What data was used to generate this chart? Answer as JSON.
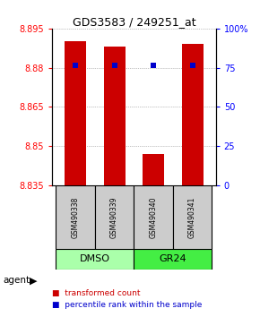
{
  "title": "GDS3583 / 249251_at",
  "samples": [
    "GSM490338",
    "GSM490339",
    "GSM490340",
    "GSM490341"
  ],
  "bar_values": [
    8.89,
    8.888,
    8.847,
    8.889
  ],
  "bar_bottom": 8.835,
  "percentile_values": [
    8.881,
    8.881,
    8.881,
    8.881
  ],
  "ylim_left": [
    8.835,
    8.895
  ],
  "ylim_right": [
    0,
    100
  ],
  "yticks_left": [
    8.835,
    8.85,
    8.865,
    8.88,
    8.895
  ],
  "yticks_right": [
    0,
    25,
    50,
    75,
    100
  ],
  "ytick_labels_right": [
    "0",
    "25",
    "50",
    "75",
    "100%"
  ],
  "groups": [
    {
      "label": "DMSO",
      "samples": [
        0,
        1
      ],
      "color": "#aaffaa"
    },
    {
      "label": "GR24",
      "samples": [
        2,
        3
      ],
      "color": "#44ee44"
    }
  ],
  "bar_color": "#cc0000",
  "percentile_color": "#0000cc",
  "bar_width": 0.55,
  "agent_label": "agent",
  "legend_items": [
    {
      "color": "#cc0000",
      "label": "transformed count"
    },
    {
      "color": "#0000cc",
      "label": "percentile rank within the sample"
    }
  ]
}
